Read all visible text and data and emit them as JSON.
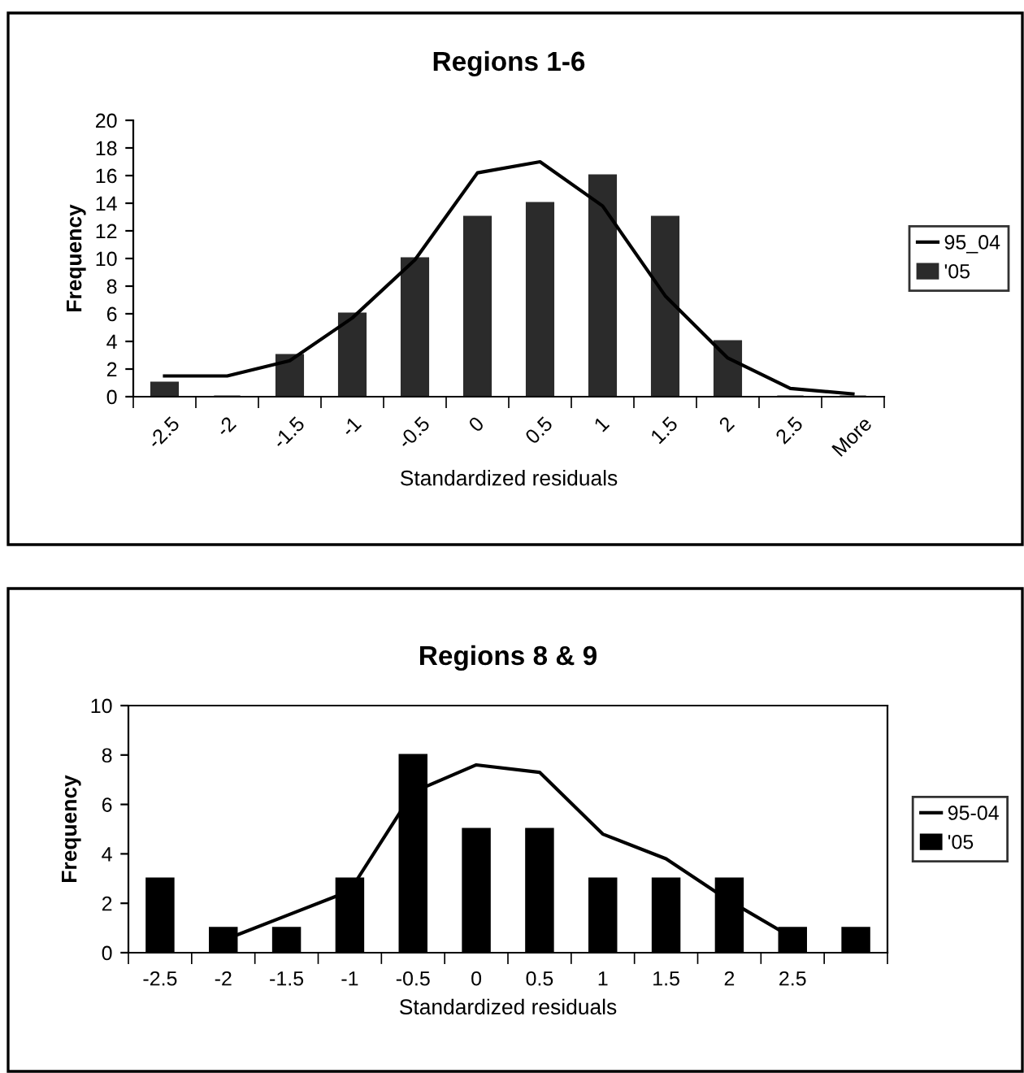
{
  "chart_data": [
    {
      "type": "bar",
      "title": "Regions 1-6",
      "xlabel": "Standardized residuals",
      "ylabel": "Frequency",
      "categories": [
        "-2.5",
        "-2",
        "-1.5",
        "-1",
        "-0.5",
        "0",
        "0.5",
        "1",
        "1.5",
        "2",
        "2.5",
        "More"
      ],
      "series": [
        {
          "name": "95_04",
          "type": "line",
          "color": "#000000",
          "values": [
            1.5,
            1.5,
            2.6,
            5.7,
            9.9,
            16.2,
            17.0,
            13.8,
            7.3,
            2.8,
            0.6,
            0.2
          ]
        },
        {
          "name": "'05",
          "color": "#2b2b2b",
          "values": [
            1,
            0,
            3,
            6,
            10,
            13,
            14,
            16,
            13,
            4,
            0,
            0
          ]
        }
      ],
      "ylim": [
        0,
        20
      ],
      "yticks": [
        0,
        2,
        4,
        6,
        8,
        10,
        12,
        14,
        16,
        18,
        20
      ],
      "grid": false,
      "legend": "right"
    },
    {
      "type": "bar",
      "title": "Regions 8 & 9",
      "xlabel": "Standardized residuals",
      "ylabel": "Frequency",
      "categories": [
        "-2.5",
        "-2",
        "-1.5",
        "-1",
        "-0.5",
        "0",
        "0.5",
        "1",
        "1.5",
        "2",
        "2.5",
        null
      ],
      "series": [
        {
          "name": "95-04",
          "type": "line",
          "color": "#000000",
          "values": [
            null,
            0.5,
            1.5,
            2.5,
            6.5,
            7.6,
            7.3,
            4.8,
            3.8,
            2.1,
            0.6,
            null
          ]
        },
        {
          "name": "'05",
          "color": "#000000",
          "values": [
            3,
            1,
            1,
            3,
            8,
            5,
            5,
            3,
            3,
            3,
            1,
            1
          ]
        }
      ],
      "ylim": [
        0,
        10
      ],
      "yticks": [
        0,
        2,
        4,
        6,
        8,
        10
      ],
      "grid": false,
      "legend": "right"
    }
  ]
}
